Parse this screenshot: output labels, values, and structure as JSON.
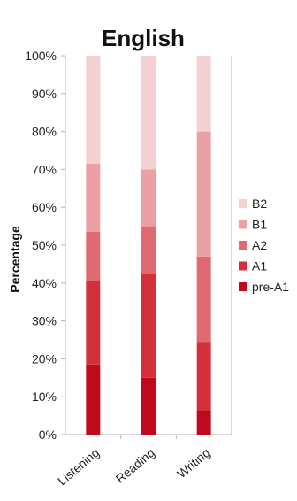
{
  "chart_data": {
    "type": "bar",
    "stacked": true,
    "title": "English",
    "xlabel": "",
    "ylabel": "Percentage",
    "ylim": [
      0,
      100
    ],
    "y_ticks": [
      "0%",
      "10%",
      "20%",
      "30%",
      "40%",
      "50%",
      "60%",
      "70%",
      "80%",
      "90%",
      "100%"
    ],
    "categories": [
      "Listening",
      "Reading",
      "Writing"
    ],
    "series": [
      {
        "name": "pre-A1",
        "color": "#c0091c",
        "values": [
          18.5,
          15,
          6.5
        ]
      },
      {
        "name": "A1",
        "color": "#d4303c",
        "values": [
          22,
          27.5,
          18
        ]
      },
      {
        "name": "A2",
        "color": "#e06a72",
        "values": [
          13,
          12.5,
          22.5
        ]
      },
      {
        "name": "B1",
        "color": "#eba0a6",
        "values": [
          18,
          15,
          33
        ]
      },
      {
        "name": "B2",
        "color": "#f5d0d3",
        "values": [
          28.5,
          30,
          20
        ]
      }
    ],
    "legend_position": "right",
    "grid": false,
    "axis_color": "#b5b5b5"
  }
}
